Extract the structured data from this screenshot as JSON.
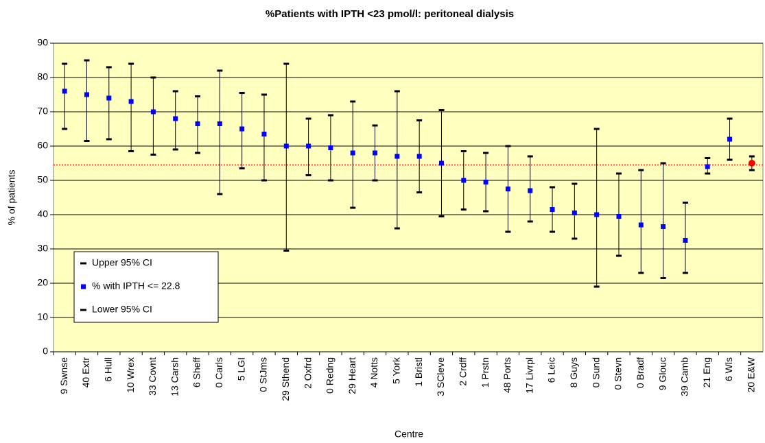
{
  "chart_data": {
    "type": "errorbar",
    "title": "%Patients with IPTH <23 pmol/l:  peritoneal dialysis",
    "x_label": "Centre",
    "y_label": "% of patients",
    "categories": [
      "9 Swnse",
      "40 Extr",
      "6 Hull",
      "10 Wrex",
      "33 Covnt",
      "13 Carsh",
      "6 Sheff",
      "0 Carls",
      "5 LGI",
      "0 StJms",
      "29 Sthend",
      "2 Oxfrd",
      "0 Redng",
      "29 Heart",
      "4 Notts",
      "5 York",
      "1 Bristl",
      "3 SCleve",
      "2 Crdff",
      "1 Prstn",
      "48 Ports",
      "17 Livrpl",
      "6 Leic",
      "8 Guys",
      "0 Sund",
      "0 Stevn",
      "0 Bradf",
      "9 Glouc",
      "39 Camb",
      "21 Eng",
      "6 Wls",
      "20 E&W"
    ],
    "series": [
      {
        "name": "Upper 95% CI",
        "color": "#000000",
        "values": [
          84,
          85,
          83,
          84,
          80,
          76,
          74.5,
          82,
          75.5,
          75,
          84,
          68,
          69,
          73,
          66,
          76,
          67.5,
          70.5,
          58.5,
          58,
          60,
          57,
          48,
          49,
          65,
          52,
          53,
          55,
          43.5,
          56.5,
          68,
          57
        ]
      },
      {
        "name": "% with IPTH <= 22.8",
        "color": "#0000ff",
        "values": [
          76,
          75,
          74,
          73,
          70,
          68,
          66.5,
          66.5,
          65,
          63.5,
          60,
          60,
          59.5,
          58,
          58,
          57,
          57,
          55,
          50,
          49.5,
          47.5,
          47,
          41.5,
          40.5,
          40,
          39.5,
          37,
          36.5,
          32.5,
          54,
          62,
          55
        ]
      },
      {
        "name": "Lower 95% CI",
        "color": "#000000",
        "values": [
          65,
          61.5,
          62,
          58.5,
          57.5,
          59,
          58,
          46,
          53.5,
          50,
          29.5,
          51.5,
          50,
          42,
          50,
          36,
          46.5,
          39.5,
          41.5,
          41,
          35,
          38,
          35,
          33,
          19,
          28,
          23,
          21.5,
          23,
          52,
          56,
          53
        ]
      }
    ],
    "highlight_index": 31,
    "highlight_color": "#ff0000",
    "reference_line": 54.5,
    "reference_color": "#ff0000",
    "ylim": [
      0,
      90
    ],
    "yticks": [
      0,
      10,
      20,
      30,
      40,
      50,
      60,
      70,
      80,
      90
    ],
    "grid": true,
    "background": "#ffffc0",
    "legend": "lower-left"
  }
}
